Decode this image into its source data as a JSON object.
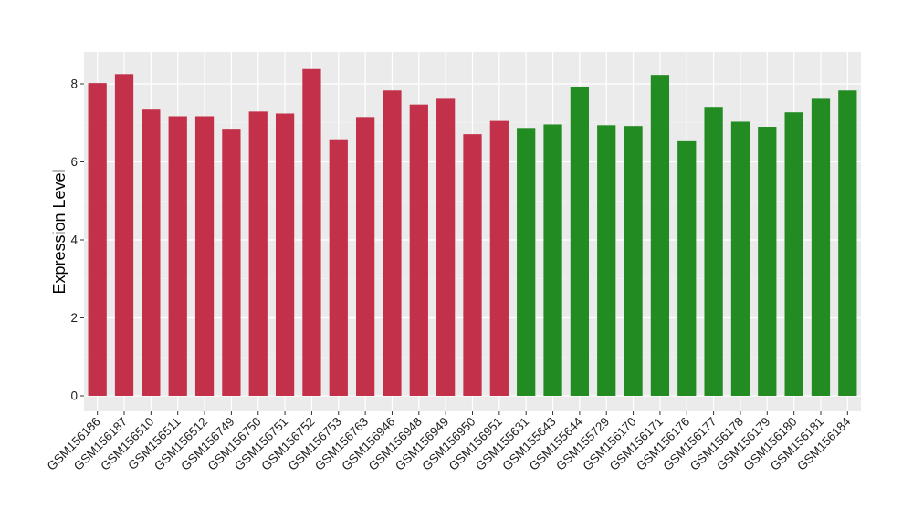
{
  "chart_data": {
    "type": "bar",
    "ylabel": "Expression Level",
    "xlabel": "",
    "ylim": [
      0,
      8.8
    ],
    "yticks": [
      0,
      2,
      4,
      6,
      8
    ],
    "grid": true,
    "background": "#EBEBEB",
    "categories": [
      "GSM156186",
      "GSM156187",
      "GSM156510",
      "GSM156511",
      "GSM156512",
      "GSM156749",
      "GSM156750",
      "GSM156751",
      "GSM156752",
      "GSM156753",
      "GSM156763",
      "GSM156946",
      "GSM156948",
      "GSM156949",
      "GSM156950",
      "GSM156951",
      "GSM155631",
      "GSM155643",
      "GSM155644",
      "GSM155729",
      "GSM156170",
      "GSM156171",
      "GSM156176",
      "GSM156177",
      "GSM156178",
      "GSM156179",
      "GSM156180",
      "GSM156181",
      "GSM156184"
    ],
    "values": [
      8.02,
      8.25,
      7.34,
      7.17,
      7.17,
      6.85,
      7.29,
      7.24,
      8.38,
      6.58,
      7.15,
      7.83,
      7.47,
      7.64,
      6.71,
      7.05,
      6.87,
      6.96,
      7.93,
      6.94,
      6.92,
      8.23,
      6.53,
      7.41,
      7.03,
      6.9,
      7.27,
      7.64,
      7.83
    ],
    "group_colors": [
      "#C23049",
      "#228B22"
    ],
    "groups": [
      0,
      0,
      0,
      0,
      0,
      0,
      0,
      0,
      0,
      0,
      0,
      0,
      0,
      0,
      0,
      0,
      1,
      1,
      1,
      1,
      1,
      1,
      1,
      1,
      1,
      1,
      1,
      1,
      1
    ]
  }
}
